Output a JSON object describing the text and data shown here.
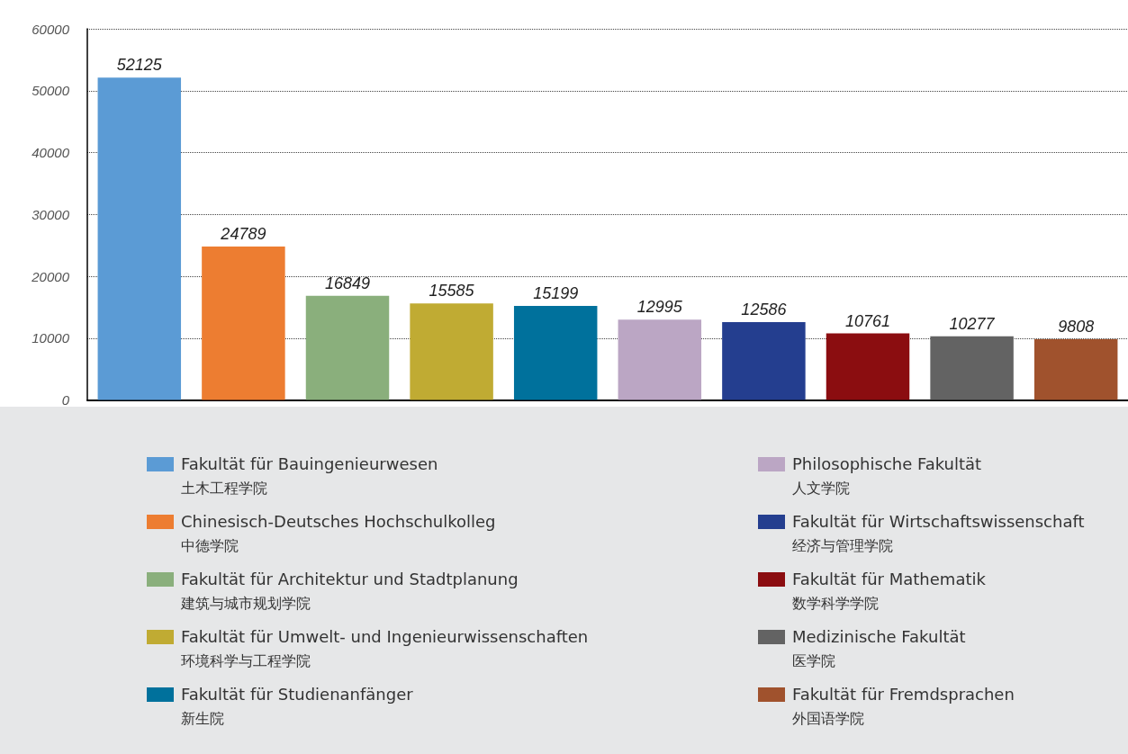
{
  "chart_data": {
    "type": "bar",
    "categories": [
      null,
      null,
      null,
      null,
      null,
      null,
      null,
      null,
      null,
      null
    ],
    "series": [
      {
        "name": "Fakultät für Bauingenieurwesen\n土木工程学院",
        "color": "#5b9bd5",
        "values": [
          52125,
          null,
          null,
          null,
          null,
          null,
          null,
          null,
          null,
          null
        ]
      },
      {
        "name": "Chinesisch-Deutsches Hochschulkolleg\n中德学院",
        "color": "#ed7d31",
        "values": [
          null,
          24789,
          null,
          null,
          null,
          null,
          null,
          null,
          null,
          null
        ]
      },
      {
        "name": "Fakultät für Architektur und Stadtplanung\n建筑与城市规划学院",
        "color": "#8aaf7c",
        "values": [
          null,
          null,
          16849,
          null,
          null,
          null,
          null,
          null,
          null,
          null
        ]
      },
      {
        "name": "Fakultät für Umwelt- und Ingenieurwissenschaften\n环境科学与工程学院",
        "color": "#c0ab33",
        "values": [
          null,
          null,
          null,
          15585,
          null,
          null,
          null,
          null,
          null,
          null
        ]
      },
      {
        "name": "Fakultät für Studienanfänger\n新生院",
        "color": "#00719c",
        "values": [
          null,
          null,
          null,
          null,
          15199,
          null,
          null,
          null,
          null,
          null
        ]
      },
      {
        "name": "Philosophische Fakultät\n人文学院",
        "color": "#bba6c4",
        "values": [
          null,
          null,
          null,
          null,
          null,
          12995,
          null,
          null,
          null,
          null
        ]
      },
      {
        "name": " Fakultät für Wirtschaftswissenschaft\n经济与管理学院",
        "color": "#243e8f",
        "values": [
          null,
          null,
          null,
          null,
          null,
          null,
          12586,
          null,
          null,
          null
        ]
      },
      {
        "name": "Fakultät für Mathematik\n数学科学学院",
        "color": "#8b0d10",
        "values": [
          null,
          null,
          null,
          null,
          null,
          null,
          null,
          10761,
          null,
          null
        ]
      },
      {
        "name": "Medizinische Fakultät\n医学院",
        "color": "#636363",
        "values": [
          null,
          null,
          null,
          null,
          null,
          null,
          null,
          null,
          10277,
          null
        ]
      },
      {
        "name": "Fakultät für Fremdsprachen\n外国语学院",
        "color": "#a0522d",
        "values": [
          null,
          null,
          null,
          null,
          null,
          null,
          null,
          null,
          null,
          9808
        ]
      }
    ],
    "ylim": [
      0,
      60000
    ],
    "yticks": [
      0,
      10000,
      20000,
      30000,
      40000,
      50000,
      60000
    ],
    "grid": "y",
    "legend": "bottom",
    "tick_labels": "y",
    "data_labels": true
  }
}
